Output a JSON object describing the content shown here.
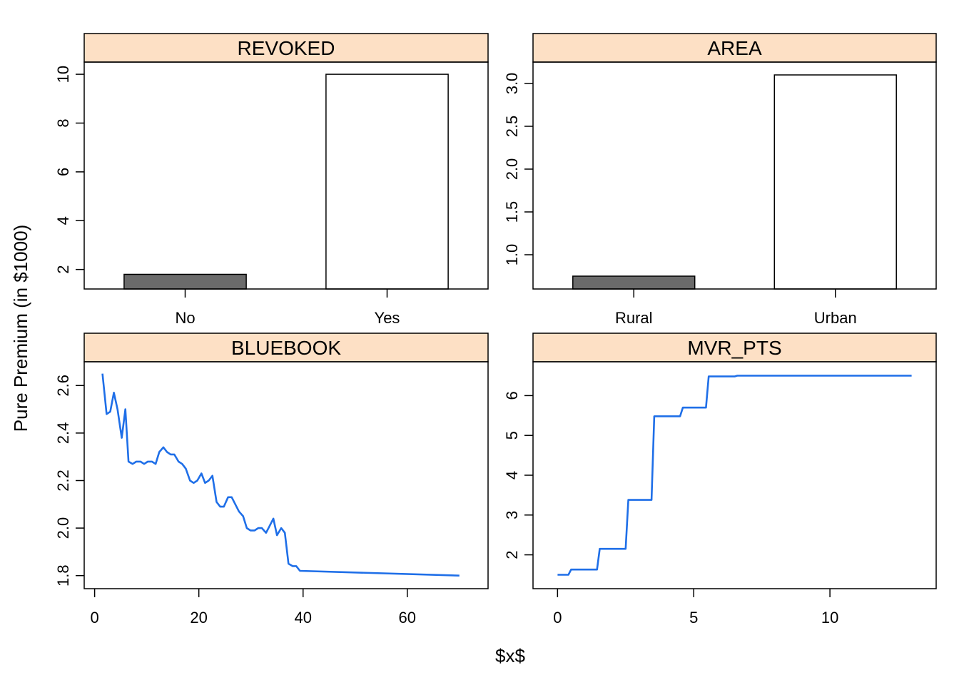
{
  "figure": {
    "ylabel": "Pure Premium (in $1000)",
    "xlabel": "$x$",
    "strip_color": "#fde0c5",
    "line_color": "#1f6fe8",
    "bar_fill_dark": "#6b6b6b",
    "bar_fill_light": "#ffffff"
  },
  "chart_data": [
    {
      "type": "bar",
      "title": "REVOKED",
      "categories": [
        "No",
        "Yes"
      ],
      "values": [
        1.8,
        10.0
      ],
      "yticks": [
        2,
        4,
        6,
        8,
        10
      ],
      "ytick_labels": [
        "2",
        "4",
        "6",
        "8",
        "10"
      ],
      "ylim": [
        1.2,
        10.5
      ],
      "bar_colors": [
        "#6b6b6b",
        "#ffffff"
      ]
    },
    {
      "type": "bar",
      "title": "AREA",
      "categories": [
        "Rural",
        "Urban"
      ],
      "values": [
        0.75,
        3.1
      ],
      "yticks": [
        1.0,
        1.5,
        2.0,
        2.5,
        3.0
      ],
      "ytick_labels": [
        "1.0",
        "1.5",
        "2.0",
        "2.5",
        "3.0"
      ],
      "ylim": [
        0.6,
        3.25
      ],
      "bar_colors": [
        "#6b6b6b",
        "#ffffff"
      ]
    },
    {
      "type": "line",
      "title": "BLUEBOOK",
      "x": [
        1.5,
        2.3,
        3.0,
        3.7,
        4.4,
        5.2,
        5.9,
        6.5,
        7.3,
        8.0,
        8.8,
        9.5,
        10.2,
        11.0,
        11.7,
        12.4,
        13.2,
        13.9,
        14.6,
        15.3,
        16.1,
        16.8,
        17.5,
        18.3,
        19.0,
        19.7,
        20.5,
        21.2,
        21.9,
        22.6,
        23.4,
        24.1,
        24.8,
        25.6,
        26.3,
        27.0,
        27.7,
        28.5,
        29.2,
        29.9,
        30.7,
        31.4,
        32.1,
        32.9,
        33.6,
        34.3,
        35.0,
        35.8,
        36.5,
        37.2,
        38.0,
        38.7,
        39.4,
        70.0
      ],
      "y": [
        2.65,
        2.48,
        2.49,
        2.57,
        2.5,
        2.38,
        2.5,
        2.28,
        2.27,
        2.28,
        2.28,
        2.27,
        2.28,
        2.28,
        2.27,
        2.32,
        2.34,
        2.32,
        2.31,
        2.31,
        2.28,
        2.27,
        2.25,
        2.2,
        2.19,
        2.2,
        2.23,
        2.19,
        2.2,
        2.22,
        2.11,
        2.09,
        2.09,
        2.13,
        2.13,
        2.1,
        2.07,
        2.05,
        2.0,
        1.99,
        1.99,
        2.0,
        2.0,
        1.98,
        2.01,
        2.04,
        1.97,
        2.0,
        1.98,
        1.85,
        1.84,
        1.84,
        1.82,
        1.8
      ],
      "xticks": [
        0,
        20,
        40,
        60
      ],
      "xtick_labels": [
        "0",
        "20",
        "40",
        "60"
      ],
      "yticks": [
        1.8,
        2.0,
        2.2,
        2.4,
        2.6
      ],
      "ytick_labels": [
        "1.8",
        "2.0",
        "2.2",
        "2.4",
        "2.6"
      ],
      "xlim": [
        -2,
        75.5
      ],
      "ylim": [
        1.745,
        2.7
      ]
    },
    {
      "type": "line",
      "title": "MVR_PTS",
      "x": [
        0,
        0.4,
        0.5,
        1.45,
        1.55,
        2.5,
        2.6,
        3.45,
        3.55,
        4.5,
        4.6,
        5.45,
        5.55,
        6.5,
        6.6,
        13.0
      ],
      "y": [
        1.5,
        1.5,
        1.63,
        1.63,
        2.15,
        2.15,
        3.38,
        3.38,
        5.48,
        5.48,
        5.7,
        5.7,
        6.48,
        6.48,
        6.5,
        6.5
      ],
      "xticks": [
        0,
        5,
        10
      ],
      "xtick_labels": [
        "0",
        "5",
        "10"
      ],
      "yticks": [
        2,
        3,
        4,
        5,
        6
      ],
      "ytick_labels": [
        "2",
        "3",
        "4",
        "5",
        "6"
      ],
      "xlim": [
        -0.9,
        13.9
      ],
      "ylim": [
        1.15,
        6.85
      ]
    }
  ]
}
